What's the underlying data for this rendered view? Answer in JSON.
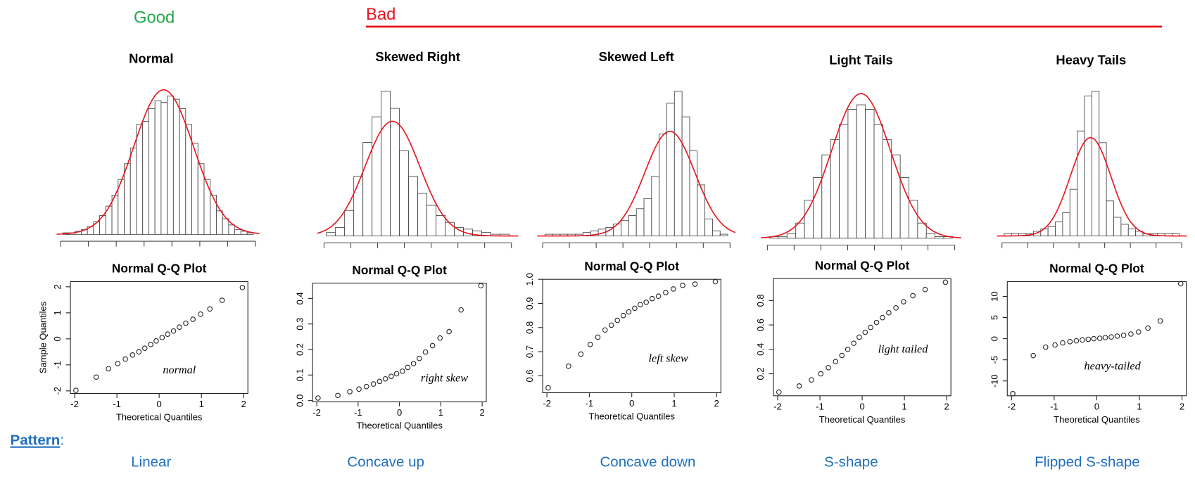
{
  "header": {
    "good": "Good",
    "bad": "Bad"
  },
  "panels": [
    {
      "title": "Normal",
      "histogram": {
        "values": [
          1,
          1,
          2,
          3,
          5,
          8,
          12,
          18,
          25,
          35,
          45,
          55,
          70,
          72,
          80,
          85,
          84,
          88,
          86,
          80,
          70,
          58,
          45,
          35,
          25,
          15,
          10,
          6,
          3,
          2,
          1
        ]
      },
      "qq": {
        "title": "Normal Q-Q Plot",
        "xlabel": "Theoretical Quantiles",
        "ylabel": "Sample Quantiles",
        "annotation": "normal",
        "x": [
          -1.97,
          -1.49,
          -1.2,
          -0.98,
          -0.8,
          -0.63,
          -0.48,
          -0.34,
          -0.2,
          -0.07,
          0.07,
          0.2,
          0.34,
          0.48,
          0.63,
          0.8,
          0.98,
          1.2,
          1.49,
          1.97
        ],
        "y": [
          -1.98,
          -1.47,
          -1.15,
          -0.95,
          -0.78,
          -0.62,
          -0.5,
          -0.36,
          -0.22,
          -0.08,
          0.05,
          0.18,
          0.3,
          0.45,
          0.6,
          0.75,
          0.95,
          1.15,
          1.48,
          1.97
        ],
        "xlim": [
          -2.1,
          2.1
        ],
        "ylim": [
          -2.1,
          2.2
        ],
        "xticks": [
          -2,
          -1,
          0,
          1,
          2
        ],
        "yticks": [
          -2,
          -1,
          0,
          1,
          2
        ]
      },
      "pattern": "Linear"
    },
    {
      "title": "Skewed Right",
      "histogram": {
        "values": [
          2,
          5,
          15,
          35,
          55,
          70,
          85,
          75,
          50,
          35,
          25,
          18,
          12,
          8,
          5,
          4,
          3,
          2,
          1,
          1
        ]
      },
      "qq": {
        "title": "Normal Q-Q Plot",
        "xlabel": "Theoretical Quantiles",
        "annotation": "right skew",
        "x": [
          -1.97,
          -1.49,
          -1.2,
          -0.98,
          -0.8,
          -0.63,
          -0.48,
          -0.34,
          -0.2,
          -0.07,
          0.07,
          0.2,
          0.34,
          0.48,
          0.63,
          0.8,
          0.98,
          1.2,
          1.49,
          1.97
        ],
        "y": [
          0.01,
          0.02,
          0.035,
          0.045,
          0.055,
          0.065,
          0.075,
          0.085,
          0.095,
          0.105,
          0.115,
          0.13,
          0.145,
          0.165,
          0.19,
          0.215,
          0.245,
          0.27,
          0.355,
          0.45
        ],
        "xlim": [
          -2.1,
          2.1
        ],
        "ylim": [
          -0.005,
          0.46
        ],
        "xticks": [
          -2,
          -1,
          0,
          1,
          2
        ],
        "yticks": [
          {
            "value": 0,
            "label": "0.0"
          },
          0.1,
          0.2,
          0.3,
          0.4
        ]
      },
      "pattern": "Concave up"
    },
    {
      "title": "Skewed Left",
      "histogram": {
        "values": [
          1,
          1,
          1,
          1,
          1,
          2,
          3,
          4,
          5,
          7,
          9,
          12,
          16,
          22,
          35,
          60,
          78,
          85,
          70,
          50,
          30,
          10,
          3,
          1
        ]
      },
      "qq": {
        "title": "Normal Q-Q Plot",
        "xlabel": "Theoretical Quantiles",
        "annotation": "left skew",
        "x": [
          -1.97,
          -1.49,
          -1.2,
          -0.98,
          -0.8,
          -0.63,
          -0.48,
          -0.34,
          -0.2,
          -0.07,
          0.07,
          0.2,
          0.34,
          0.48,
          0.63,
          0.8,
          0.98,
          1.2,
          1.49,
          1.97
        ],
        "y": [
          0.55,
          0.64,
          0.69,
          0.73,
          0.76,
          0.79,
          0.81,
          0.83,
          0.85,
          0.865,
          0.88,
          0.895,
          0.905,
          0.92,
          0.93,
          0.945,
          0.96,
          0.975,
          0.98,
          0.99
        ],
        "xlim": [
          -2.1,
          2.1
        ],
        "ylim": [
          0.53,
          1.0
        ],
        "xticks": [
          -2,
          -1,
          0,
          1,
          2
        ],
        "yticks": [
          0.6,
          0.7,
          0.8,
          0.9,
          {
            "value": 1,
            "label": "1.0"
          }
        ]
      },
      "pattern": "Concave down"
    },
    {
      "title": "Light Tails",
      "histogram": {
        "values": [
          1,
          1,
          3,
          10,
          25,
          40,
          55,
          65,
          75,
          85,
          88,
          85,
          75,
          65,
          55,
          40,
          25,
          10,
          3,
          1,
          1
        ]
      },
      "qq": {
        "title": "Normal Q-Q Plot",
        "xlabel": "Theoretical Quantiles",
        "annotation": "light tailed",
        "x": [
          -1.97,
          -1.49,
          -1.2,
          -0.98,
          -0.8,
          -0.63,
          -0.48,
          -0.34,
          -0.2,
          -0.07,
          0.07,
          0.2,
          0.34,
          0.48,
          0.63,
          0.8,
          0.98,
          1.2,
          1.49,
          1.97
        ],
        "y": [
          0.05,
          0.1,
          0.15,
          0.2,
          0.25,
          0.3,
          0.35,
          0.4,
          0.45,
          0.5,
          0.54,
          0.58,
          0.62,
          0.66,
          0.7,
          0.74,
          0.79,
          0.84,
          0.89,
          0.95
        ],
        "xlim": [
          -2.1,
          2.1
        ],
        "ylim": [
          0.02,
          0.98
        ],
        "xticks": [
          -2,
          -1,
          0,
          1,
          2
        ],
        "yticks": [
          0.2,
          0.4,
          0.6,
          0.8
        ]
      },
      "pattern": "S-shape"
    },
    {
      "title": "Heavy Tails",
      "histogram": {
        "values": [
          1,
          1,
          1,
          1,
          2,
          3,
          4,
          6,
          10,
          20,
          45,
          60,
          62,
          40,
          15,
          8,
          5,
          3,
          2,
          1,
          1,
          1,
          1,
          1
        ]
      },
      "qq": {
        "title": "Normal Q-Q Plot",
        "xlabel": "Theoretical Quantiles",
        "annotation": "heavy-tailed",
        "x": [
          -1.97,
          -1.49,
          -1.2,
          -0.98,
          -0.8,
          -0.63,
          -0.48,
          -0.34,
          -0.2,
          -0.07,
          0.07,
          0.2,
          0.34,
          0.48,
          0.63,
          0.8,
          0.98,
          1.2,
          1.49,
          1.97
        ],
        "y": [
          -13,
          -4,
          -2,
          -1.5,
          -1,
          -0.7,
          -0.5,
          -0.3,
          -0.15,
          0,
          0.1,
          0.25,
          0.4,
          0.6,
          0.8,
          1.1,
          1.6,
          2.5,
          4.2,
          13
        ],
        "xlim": [
          -2.1,
          2.1
        ],
        "ylim": [
          -13.5,
          13.5
        ],
        "xticks": [
          -2,
          -1,
          0,
          1,
          2
        ],
        "yticks": [
          -10,
          -5,
          0,
          5,
          10
        ]
      },
      "pattern": "Flipped S-shape"
    }
  ],
  "pattern_heading": "Pattern",
  "pattern_colon": ":"
}
